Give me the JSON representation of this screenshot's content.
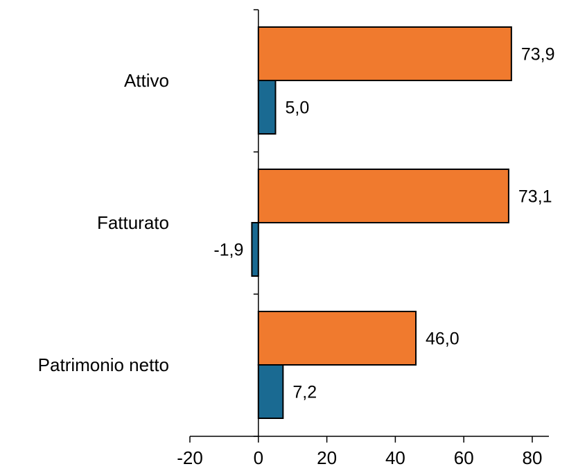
{
  "chart_data": {
    "type": "bar",
    "orientation": "horizontal",
    "categories": [
      "Attivo",
      "Fatturato",
      "Patrimonio netto"
    ],
    "series": [
      {
        "values": [
          73.9,
          73.1,
          46.0
        ],
        "color": "#F07A2E",
        "labels": [
          "73,9",
          "73,1",
          "46,0"
        ]
      },
      {
        "values": [
          5.0,
          -1.9,
          7.2
        ],
        "color": "#1A6A92",
        "labels": [
          "5,0",
          "-1,9",
          "7,2"
        ]
      }
    ],
    "xlim": [
      -20,
      80
    ],
    "xticks": [
      -20,
      0,
      20,
      40,
      60,
      80
    ],
    "xtick_labels": [
      "-20",
      "0",
      "20",
      "40",
      "60",
      "80"
    ],
    "grid": false,
    "legend": "none"
  }
}
